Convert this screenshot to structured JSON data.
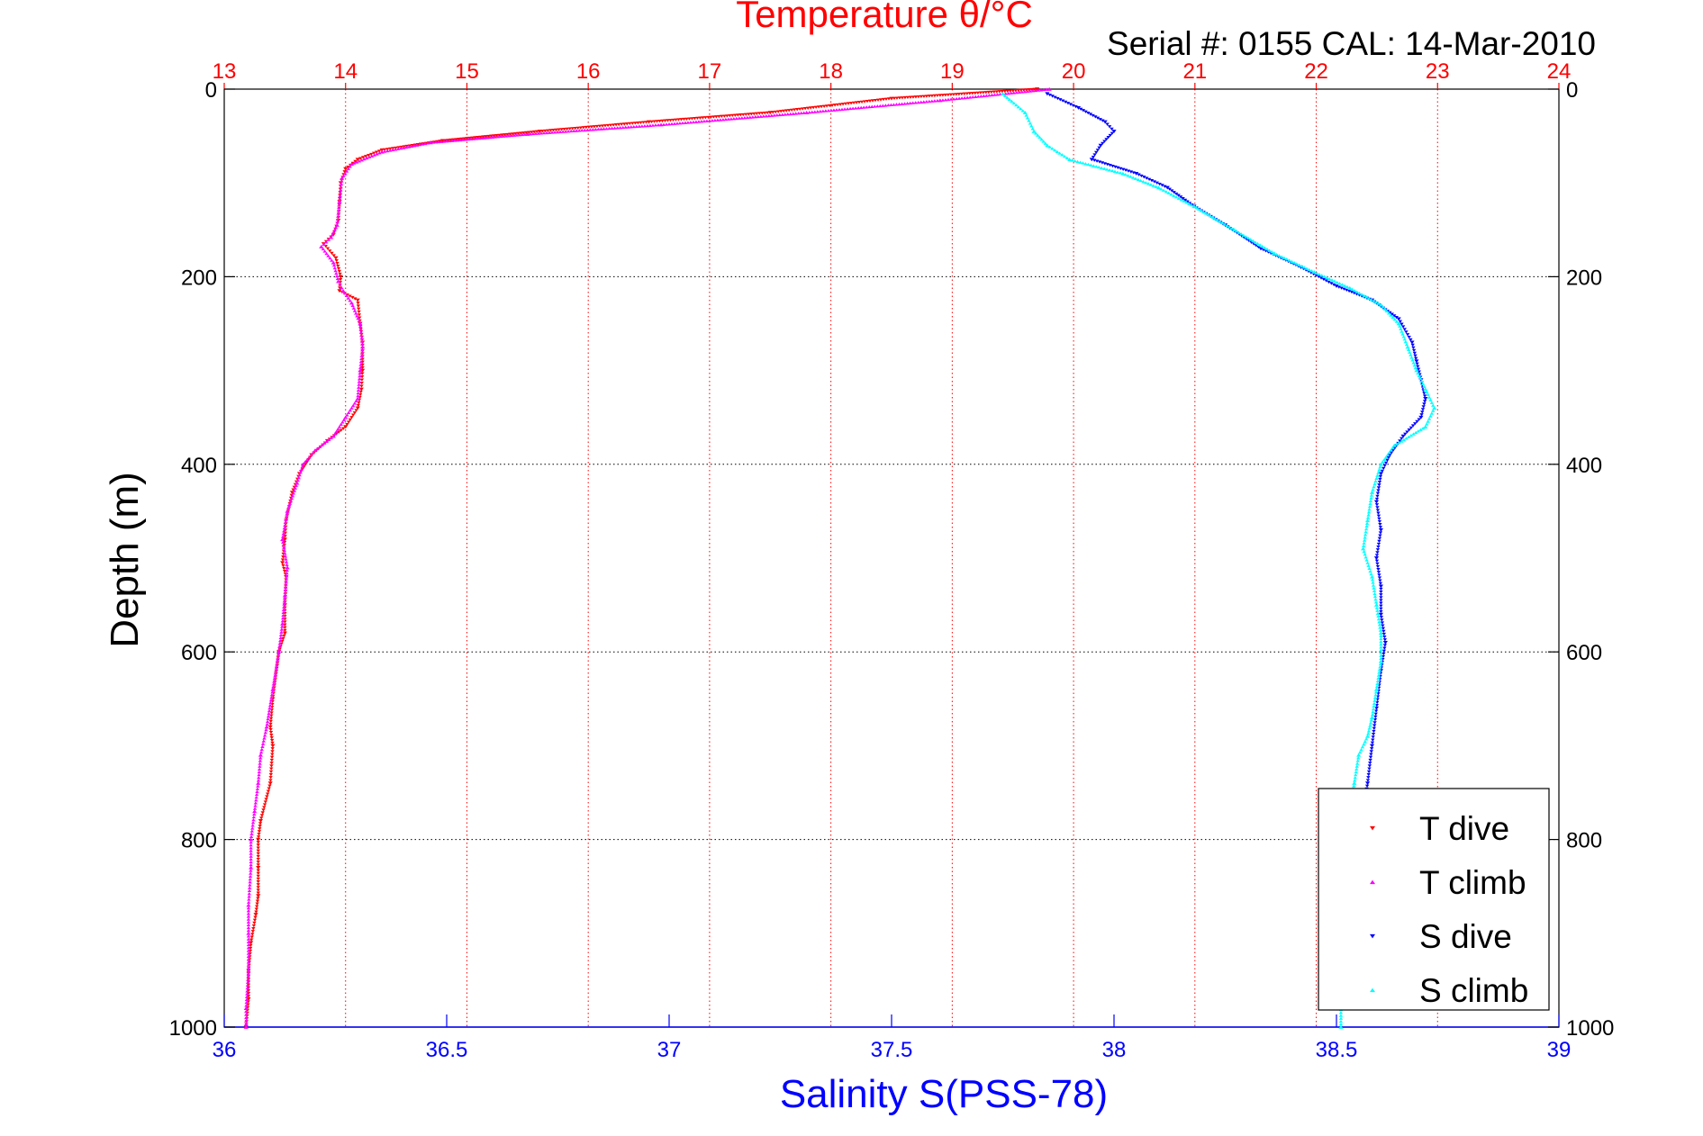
{
  "chart_data": {
    "type": "scatter",
    "title": "Temperature θ/°C",
    "subtitle": "Serial #: 0155  CAL: 14-Mar-2010",
    "xlabel": "Salinity S(PSS-78)",
    "ylabel": "Depth (m)",
    "temperature_axis": {
      "range": [
        13,
        24
      ],
      "ticks": [
        13,
        14,
        15,
        16,
        17,
        18,
        19,
        20,
        21,
        22,
        23,
        24
      ],
      "grid": true,
      "color": "#ff0000",
      "position": "top"
    },
    "salinity_axis": {
      "range": [
        36,
        39
      ],
      "ticks": [
        "36",
        "36.5",
        "37",
        "37.5",
        "38",
        "38.5",
        "39"
      ],
      "color": "#0000ff",
      "position": "bottom"
    },
    "depth_axis": {
      "range": [
        0,
        1000
      ],
      "reversed": true,
      "ticks": [
        0,
        200,
        400,
        600,
        800,
        1000
      ],
      "grid": true
    },
    "legend": {
      "placement": "bottom-right"
    },
    "series": [
      {
        "name": "T dive",
        "variable": "temperature",
        "color": "#ff0000",
        "marker": "down-triangle",
        "points": [
          [
            19.7,
            0
          ],
          [
            18.5,
            10
          ],
          [
            17.5,
            25
          ],
          [
            16.5,
            35
          ],
          [
            15.6,
            45
          ],
          [
            14.8,
            55
          ],
          [
            14.3,
            65
          ],
          [
            14.1,
            75
          ],
          [
            14.0,
            85
          ],
          [
            13.96,
            100
          ],
          [
            13.95,
            120
          ],
          [
            13.94,
            140
          ],
          [
            13.9,
            155
          ],
          [
            13.82,
            165
          ],
          [
            13.92,
            180
          ],
          [
            13.96,
            200
          ],
          [
            13.95,
            215
          ],
          [
            14.1,
            225
          ],
          [
            14.12,
            250
          ],
          [
            14.14,
            270
          ],
          [
            14.14,
            300
          ],
          [
            14.13,
            320
          ],
          [
            14.1,
            340
          ],
          [
            14.0,
            360
          ],
          [
            13.85,
            375
          ],
          [
            13.72,
            390
          ],
          [
            13.62,
            410
          ],
          [
            13.56,
            430
          ],
          [
            13.51,
            460
          ],
          [
            13.5,
            480
          ],
          [
            13.48,
            505
          ],
          [
            13.51,
            520
          ],
          [
            13.5,
            550
          ],
          [
            13.5,
            580
          ],
          [
            13.45,
            600
          ],
          [
            13.4,
            650
          ],
          [
            13.38,
            680
          ],
          [
            13.4,
            700
          ],
          [
            13.38,
            740
          ],
          [
            13.3,
            780
          ],
          [
            13.28,
            800
          ],
          [
            13.28,
            830
          ],
          [
            13.28,
            860
          ],
          [
            13.26,
            880
          ],
          [
            13.22,
            910
          ],
          [
            13.2,
            940
          ],
          [
            13.2,
            970
          ],
          [
            13.18,
            1000
          ]
        ]
      },
      {
        "name": "T climb",
        "variable": "temperature",
        "color": "#ff00ff",
        "marker": "up-triangle",
        "points": [
          [
            19.8,
            0
          ],
          [
            18.9,
            12
          ],
          [
            17.8,
            25
          ],
          [
            16.6,
            38
          ],
          [
            15.5,
            48
          ],
          [
            14.7,
            57
          ],
          [
            14.3,
            67
          ],
          [
            14.05,
            80
          ],
          [
            13.97,
            95
          ],
          [
            13.95,
            120
          ],
          [
            13.93,
            145
          ],
          [
            13.88,
            158
          ],
          [
            13.8,
            168
          ],
          [
            13.9,
            185
          ],
          [
            13.94,
            205
          ],
          [
            13.98,
            215
          ],
          [
            14.05,
            228
          ],
          [
            14.12,
            250
          ],
          [
            14.14,
            275
          ],
          [
            14.12,
            300
          ],
          [
            14.1,
            330
          ],
          [
            14.0,
            350
          ],
          [
            13.9,
            370
          ],
          [
            13.75,
            385
          ],
          [
            13.65,
            400
          ],
          [
            13.6,
            420
          ],
          [
            13.52,
            450
          ],
          [
            13.48,
            480
          ],
          [
            13.52,
            510
          ],
          [
            13.5,
            540
          ],
          [
            13.48,
            570
          ],
          [
            13.45,
            600
          ],
          [
            13.4,
            640
          ],
          [
            13.35,
            680
          ],
          [
            13.3,
            710
          ],
          [
            13.28,
            740
          ],
          [
            13.25,
            770
          ],
          [
            13.22,
            800
          ],
          [
            13.22,
            830
          ],
          [
            13.2,
            870
          ],
          [
            13.2,
            900
          ],
          [
            13.2,
            940
          ],
          [
            13.18,
            980
          ],
          [
            13.18,
            1000
          ]
        ]
      },
      {
        "name": "S dive",
        "variable": "salinity",
        "color": "#0000ff",
        "marker": "down-triangle",
        "points": [
          [
            37.85,
            5
          ],
          [
            37.92,
            20
          ],
          [
            37.98,
            35
          ],
          [
            38.0,
            45
          ],
          [
            37.97,
            60
          ],
          [
            37.95,
            75
          ],
          [
            38.05,
            90
          ],
          [
            38.12,
            105
          ],
          [
            38.18,
            125
          ],
          [
            38.25,
            145
          ],
          [
            38.33,
            170
          ],
          [
            38.42,
            190
          ],
          [
            38.5,
            210
          ],
          [
            38.58,
            225
          ],
          [
            38.64,
            245
          ],
          [
            38.67,
            270
          ],
          [
            38.68,
            290
          ],
          [
            38.69,
            310
          ],
          [
            38.7,
            330
          ],
          [
            38.69,
            350
          ],
          [
            38.65,
            370
          ],
          [
            38.62,
            390
          ],
          [
            38.6,
            410
          ],
          [
            38.59,
            440
          ],
          [
            38.6,
            470
          ],
          [
            38.59,
            500
          ],
          [
            38.6,
            530
          ],
          [
            38.6,
            560
          ],
          [
            38.61,
            590
          ],
          [
            38.6,
            620
          ],
          [
            38.59,
            660
          ],
          [
            38.58,
            700
          ],
          [
            38.57,
            740
          ],
          [
            38.56,
            770
          ]
        ]
      },
      {
        "name": "S climb",
        "variable": "salinity",
        "color": "#00ffff",
        "marker": "up-triangle",
        "points": [
          [
            37.75,
            5
          ],
          [
            37.8,
            25
          ],
          [
            37.82,
            45
          ],
          [
            37.85,
            60
          ],
          [
            37.9,
            75
          ],
          [
            38.02,
            90
          ],
          [
            38.1,
            105
          ],
          [
            38.18,
            125
          ],
          [
            38.27,
            150
          ],
          [
            38.36,
            175
          ],
          [
            38.45,
            195
          ],
          [
            38.53,
            212
          ],
          [
            38.6,
            230
          ],
          [
            38.64,
            250
          ],
          [
            38.66,
            275
          ],
          [
            38.68,
            300
          ],
          [
            38.7,
            320
          ],
          [
            38.72,
            340
          ],
          [
            38.7,
            360
          ],
          [
            38.63,
            380
          ],
          [
            38.6,
            400
          ],
          [
            38.58,
            430
          ],
          [
            38.57,
            460
          ],
          [
            38.56,
            490
          ],
          [
            38.58,
            520
          ],
          [
            38.59,
            550
          ],
          [
            38.6,
            580
          ],
          [
            38.6,
            610
          ],
          [
            38.59,
            640
          ],
          [
            38.58,
            670
          ],
          [
            38.57,
            690
          ],
          [
            38.55,
            710
          ],
          [
            38.54,
            740
          ],
          [
            38.53,
            770
          ],
          [
            38.52,
            800
          ],
          [
            38.51,
            830
          ],
          [
            38.51,
            870
          ],
          [
            38.5,
            920
          ],
          [
            38.51,
            960
          ],
          [
            38.51,
            1000
          ]
        ]
      }
    ]
  }
}
